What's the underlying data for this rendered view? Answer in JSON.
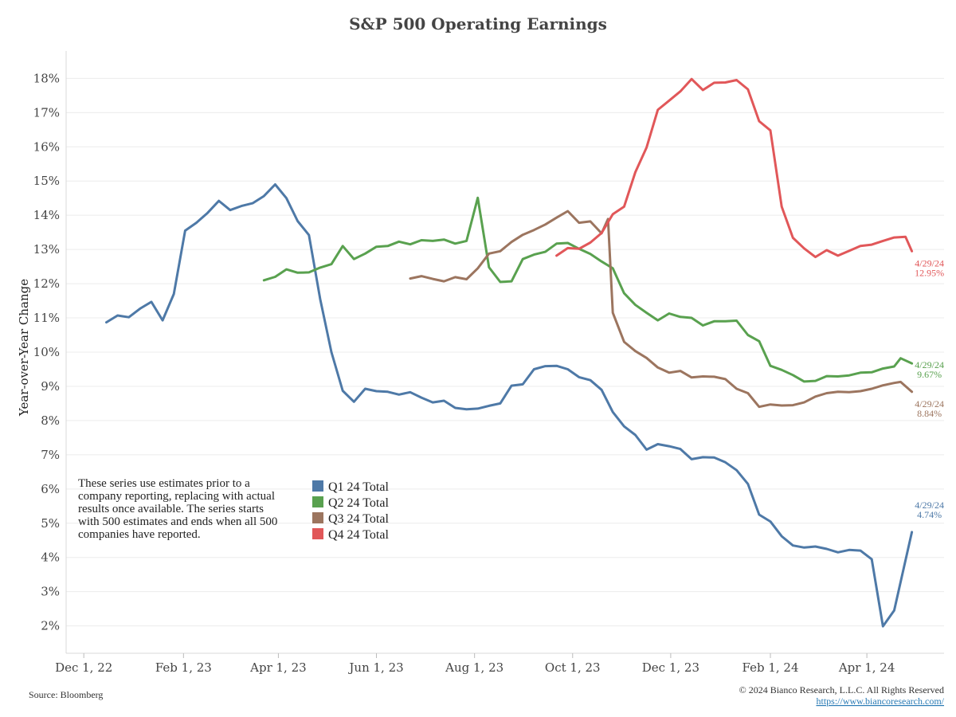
{
  "chart_data": {
    "type": "line",
    "title": "S&P 500 Operating Earnings",
    "ylabel": "Year-over-Year Change",
    "xlabel": "",
    "x_ticks": [
      "Dec 1, 22",
      "Feb 1, 23",
      "Apr 1, 23",
      "Jun 1, 23",
      "Aug 1, 23",
      "Oct 1, 23",
      "Dec 1, 23",
      "Feb 1, 24",
      "Apr 1, 24"
    ],
    "y_ticks": [
      "2%",
      "3%",
      "4%",
      "5%",
      "6%",
      "7%",
      "8%",
      "9%",
      "10%",
      "11%",
      "12%",
      "13%",
      "14%",
      "15%",
      "16%",
      "17%",
      "18%"
    ],
    "ylim": [
      1.2,
      18.8
    ],
    "xlim": [
      "2022-11-20",
      "2024-05-19"
    ],
    "grid": true,
    "legend_position": "bottom-left",
    "series": [
      {
        "name": "Q1 24 Total",
        "color": "#4e79a7",
        "end_label": [
          "4/29/24",
          "4.74%"
        ],
        "points": [
          [
            "2022-12-15",
            10.87
          ],
          [
            "2022-12-22",
            11.07
          ],
          [
            "2022-12-29",
            11.02
          ],
          [
            "2023-01-05",
            11.27
          ],
          [
            "2023-01-12",
            11.47
          ],
          [
            "2023-01-19",
            10.93
          ],
          [
            "2023-01-26",
            11.7
          ],
          [
            "2023-02-02",
            13.55
          ],
          [
            "2023-02-09",
            13.78
          ],
          [
            "2023-02-16",
            14.07
          ],
          [
            "2023-02-23",
            14.42
          ],
          [
            "2023-03-02",
            14.15
          ],
          [
            "2023-03-09",
            14.27
          ],
          [
            "2023-03-16",
            14.35
          ],
          [
            "2023-03-23",
            14.56
          ],
          [
            "2023-03-30",
            14.9
          ],
          [
            "2023-04-06",
            14.5
          ],
          [
            "2023-04-13",
            13.83
          ],
          [
            "2023-04-20",
            13.42
          ],
          [
            "2023-04-27",
            11.55
          ],
          [
            "2023-05-04",
            10.0
          ],
          [
            "2023-05-11",
            8.87
          ],
          [
            "2023-05-18",
            8.55
          ],
          [
            "2023-05-25",
            8.93
          ],
          [
            "2023-06-01",
            8.86
          ],
          [
            "2023-06-08",
            8.84
          ],
          [
            "2023-06-15",
            8.76
          ],
          [
            "2023-06-22",
            8.83
          ],
          [
            "2023-06-29",
            8.67
          ],
          [
            "2023-07-06",
            8.53
          ],
          [
            "2023-07-13",
            8.58
          ],
          [
            "2023-07-20",
            8.37
          ],
          [
            "2023-07-27",
            8.33
          ],
          [
            "2023-08-03",
            8.35
          ],
          [
            "2023-08-10",
            8.43
          ],
          [
            "2023-08-17",
            8.5
          ],
          [
            "2023-08-24",
            9.02
          ],
          [
            "2023-08-31",
            9.06
          ],
          [
            "2023-09-07",
            9.5
          ],
          [
            "2023-09-14",
            9.59
          ],
          [
            "2023-09-21",
            9.6
          ],
          [
            "2023-09-28",
            9.5
          ],
          [
            "2023-10-05",
            9.27
          ],
          [
            "2023-10-12",
            9.18
          ],
          [
            "2023-10-19",
            8.9
          ],
          [
            "2023-10-26",
            8.25
          ],
          [
            "2023-11-02",
            7.83
          ],
          [
            "2023-11-09",
            7.58
          ],
          [
            "2023-11-16",
            7.15
          ],
          [
            "2023-11-23",
            7.31
          ],
          [
            "2023-11-30",
            7.25
          ],
          [
            "2023-12-07",
            7.17
          ],
          [
            "2023-12-14",
            6.87
          ],
          [
            "2023-12-21",
            6.93
          ],
          [
            "2023-12-28",
            6.92
          ],
          [
            "2024-01-04",
            6.78
          ],
          [
            "2024-01-11",
            6.55
          ],
          [
            "2024-01-18",
            6.15
          ],
          [
            "2024-01-25",
            5.25
          ],
          [
            "2024-02-01",
            5.05
          ],
          [
            "2024-02-08",
            4.62
          ],
          [
            "2024-02-15",
            4.35
          ],
          [
            "2024-02-22",
            4.29
          ],
          [
            "2024-02-29",
            4.32
          ],
          [
            "2024-03-07",
            4.25
          ],
          [
            "2024-03-14",
            4.15
          ],
          [
            "2024-03-21",
            4.22
          ],
          [
            "2024-03-28",
            4.2
          ],
          [
            "2024-04-04",
            3.95
          ],
          [
            "2024-04-11",
            1.99
          ],
          [
            "2024-04-18",
            2.45
          ],
          [
            "2024-04-29",
            4.74
          ]
        ]
      },
      {
        "name": "Q2 24 Total",
        "color": "#59a14f",
        "end_label": [
          "4/29/24",
          "9.67%"
        ],
        "points": [
          [
            "2023-03-23",
            12.1
          ],
          [
            "2023-03-30",
            12.2
          ],
          [
            "2023-04-06",
            12.42
          ],
          [
            "2023-04-13",
            12.32
          ],
          [
            "2023-04-20",
            12.33
          ],
          [
            "2023-04-27",
            12.47
          ],
          [
            "2023-05-04",
            12.57
          ],
          [
            "2023-05-11",
            13.1
          ],
          [
            "2023-05-18",
            12.72
          ],
          [
            "2023-05-25",
            12.88
          ],
          [
            "2023-06-01",
            13.08
          ],
          [
            "2023-06-08",
            13.1
          ],
          [
            "2023-06-15",
            13.23
          ],
          [
            "2023-06-22",
            13.15
          ],
          [
            "2023-06-29",
            13.27
          ],
          [
            "2023-07-06",
            13.25
          ],
          [
            "2023-07-13",
            13.29
          ],
          [
            "2023-07-20",
            13.17
          ],
          [
            "2023-07-27",
            13.25
          ],
          [
            "2023-08-03",
            14.51
          ],
          [
            "2023-08-10",
            12.48
          ],
          [
            "2023-08-17",
            12.05
          ],
          [
            "2023-08-24",
            12.07
          ],
          [
            "2023-08-31",
            12.72
          ],
          [
            "2023-09-07",
            12.85
          ],
          [
            "2023-09-14",
            12.93
          ],
          [
            "2023-09-21",
            13.17
          ],
          [
            "2023-09-28",
            13.19
          ],
          [
            "2023-10-05",
            13.02
          ],
          [
            "2023-10-12",
            12.87
          ],
          [
            "2023-10-19",
            12.65
          ],
          [
            "2023-10-26",
            12.45
          ],
          [
            "2023-11-02",
            11.72
          ],
          [
            "2023-11-09",
            11.38
          ],
          [
            "2023-11-16",
            11.15
          ],
          [
            "2023-11-23",
            10.93
          ],
          [
            "2023-11-30",
            11.13
          ],
          [
            "2023-12-07",
            11.03
          ],
          [
            "2023-12-14",
            11.0
          ],
          [
            "2023-12-21",
            10.78
          ],
          [
            "2023-12-28",
            10.9
          ],
          [
            "2024-01-04",
            10.9
          ],
          [
            "2024-01-11",
            10.92
          ],
          [
            "2024-01-18",
            10.5
          ],
          [
            "2024-01-25",
            10.32
          ],
          [
            "2024-02-01",
            9.6
          ],
          [
            "2024-02-08",
            9.48
          ],
          [
            "2024-02-15",
            9.33
          ],
          [
            "2024-02-22",
            9.14
          ],
          [
            "2024-02-29",
            9.16
          ],
          [
            "2024-03-07",
            9.3
          ],
          [
            "2024-03-14",
            9.29
          ],
          [
            "2024-03-21",
            9.32
          ],
          [
            "2024-03-28",
            9.4
          ],
          [
            "2024-04-04",
            9.41
          ],
          [
            "2024-04-11",
            9.52
          ],
          [
            "2024-04-18",
            9.58
          ],
          [
            "2024-04-22",
            9.82
          ],
          [
            "2024-04-29",
            9.67
          ]
        ]
      },
      {
        "name": "Q3 24 Total",
        "color": "#9c755f",
        "end_label": [
          "4/29/24",
          "8.84%"
        ],
        "points": [
          [
            "2023-06-22",
            12.15
          ],
          [
            "2023-06-29",
            12.22
          ],
          [
            "2023-07-06",
            12.14
          ],
          [
            "2023-07-13",
            12.07
          ],
          [
            "2023-07-20",
            12.19
          ],
          [
            "2023-07-27",
            12.13
          ],
          [
            "2023-08-03",
            12.45
          ],
          [
            "2023-08-10",
            12.88
          ],
          [
            "2023-08-17",
            12.95
          ],
          [
            "2023-08-24",
            13.22
          ],
          [
            "2023-08-31",
            13.43
          ],
          [
            "2023-09-07",
            13.57
          ],
          [
            "2023-09-14",
            13.73
          ],
          [
            "2023-09-21",
            13.93
          ],
          [
            "2023-09-28",
            14.12
          ],
          [
            "2023-10-05",
            13.78
          ],
          [
            "2023-10-12",
            13.82
          ],
          [
            "2023-10-19",
            13.47
          ],
          [
            "2023-10-23",
            13.89
          ],
          [
            "2023-10-26",
            11.15
          ],
          [
            "2023-11-02",
            10.3
          ],
          [
            "2023-11-09",
            10.03
          ],
          [
            "2023-11-16",
            9.83
          ],
          [
            "2023-11-23",
            9.55
          ],
          [
            "2023-11-30",
            9.4
          ],
          [
            "2023-12-07",
            9.45
          ],
          [
            "2023-12-14",
            9.26
          ],
          [
            "2023-12-21",
            9.29
          ],
          [
            "2023-12-28",
            9.28
          ],
          [
            "2024-01-04",
            9.21
          ],
          [
            "2024-01-11",
            8.93
          ],
          [
            "2024-01-18",
            8.8
          ],
          [
            "2024-01-25",
            8.4
          ],
          [
            "2024-02-01",
            8.47
          ],
          [
            "2024-02-08",
            8.44
          ],
          [
            "2024-02-15",
            8.45
          ],
          [
            "2024-02-22",
            8.53
          ],
          [
            "2024-02-29",
            8.7
          ],
          [
            "2024-03-07",
            8.8
          ],
          [
            "2024-03-14",
            8.84
          ],
          [
            "2024-03-21",
            8.83
          ],
          [
            "2024-03-28",
            8.86
          ],
          [
            "2024-04-04",
            8.93
          ],
          [
            "2024-04-11",
            9.03
          ],
          [
            "2024-04-18",
            9.1
          ],
          [
            "2024-04-22",
            9.13
          ],
          [
            "2024-04-29",
            8.84
          ]
        ]
      },
      {
        "name": "Q4 24 Total",
        "color": "#e15759",
        "end_label": [
          "4/29/24",
          "12.95%"
        ],
        "points": [
          [
            "2023-09-21",
            12.82
          ],
          [
            "2023-09-28",
            13.04
          ],
          [
            "2023-10-05",
            13.02
          ],
          [
            "2023-10-12",
            13.2
          ],
          [
            "2023-10-19",
            13.48
          ],
          [
            "2023-10-26",
            14.03
          ],
          [
            "2023-11-02",
            14.25
          ],
          [
            "2023-11-09",
            15.26
          ],
          [
            "2023-11-16",
            15.98
          ],
          [
            "2023-11-23",
            17.08
          ],
          [
            "2023-11-30",
            17.35
          ],
          [
            "2023-12-07",
            17.62
          ],
          [
            "2023-12-14",
            17.98
          ],
          [
            "2023-12-21",
            17.66
          ],
          [
            "2023-12-28",
            17.87
          ],
          [
            "2024-01-04",
            17.88
          ],
          [
            "2024-01-11",
            17.95
          ],
          [
            "2024-01-18",
            17.68
          ],
          [
            "2024-01-25",
            16.75
          ],
          [
            "2024-02-01",
            16.48
          ],
          [
            "2024-02-08",
            14.25
          ],
          [
            "2024-02-15",
            13.34
          ],
          [
            "2024-02-22",
            13.03
          ],
          [
            "2024-02-29",
            12.78
          ],
          [
            "2024-03-07",
            12.98
          ],
          [
            "2024-03-14",
            12.82
          ],
          [
            "2024-03-21",
            12.96
          ],
          [
            "2024-03-28",
            13.1
          ],
          [
            "2024-04-04",
            13.14
          ],
          [
            "2024-04-11",
            13.25
          ],
          [
            "2024-04-18",
            13.35
          ],
          [
            "2024-04-25",
            13.37
          ],
          [
            "2024-04-29",
            12.95
          ]
        ]
      }
    ]
  },
  "note": {
    "lines": [
      "These series use estimates prior to a",
      "company reporting, replacing with actual",
      "results once available. The series starts",
      "with 500 estimates and ends when all 500",
      "companies have reported."
    ]
  },
  "footer": {
    "source": "Source: Bloomberg",
    "copyright": "© 2024 Bianco Research, L.L.C. All Rights Reserved",
    "url": "https://www.biancoresearch.com/"
  }
}
